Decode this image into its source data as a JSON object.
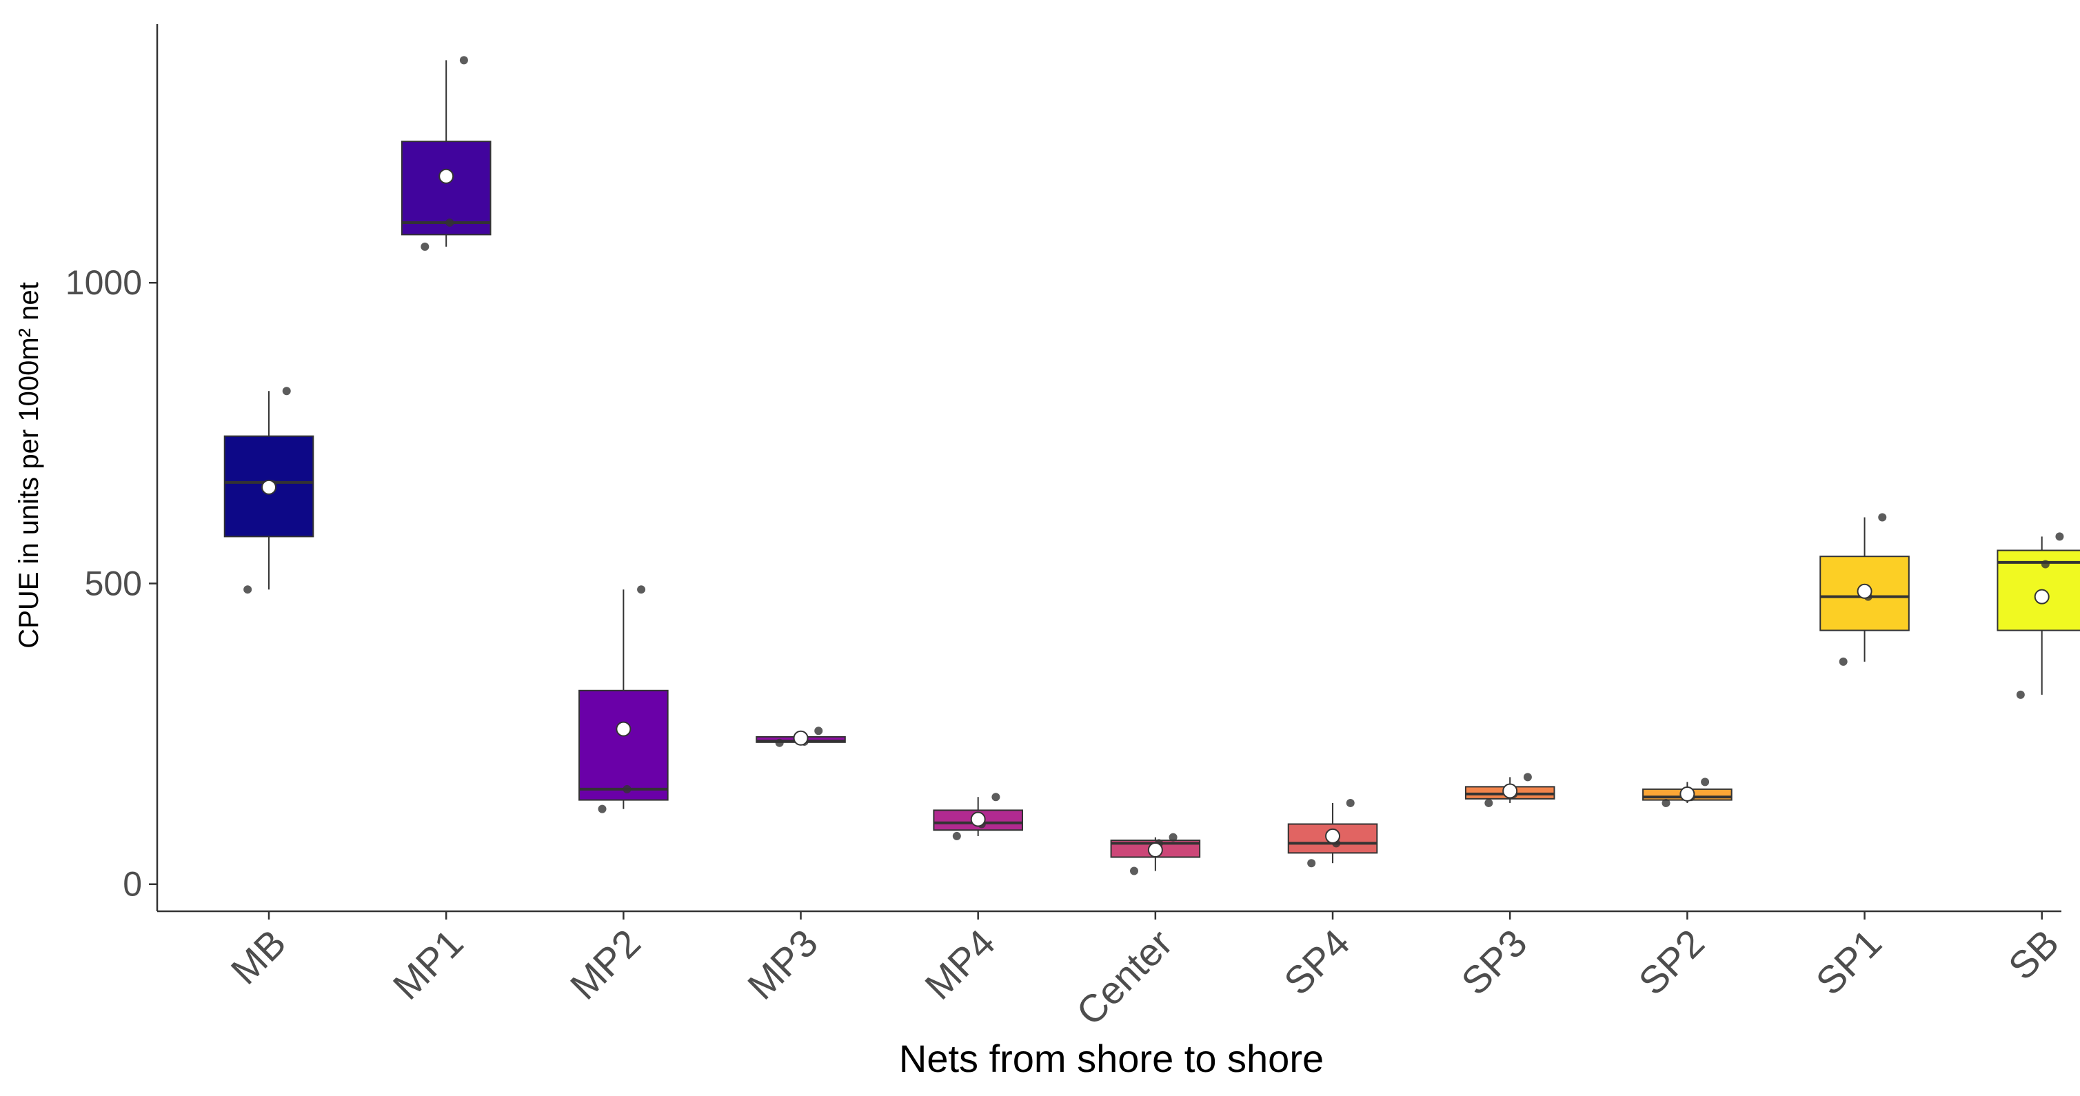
{
  "chart_data": {
    "type": "boxplot",
    "title": "",
    "xlabel": "Nets from shore to shore",
    "ylabel": "CPUE in units per 1000m² net",
    "ylim": [
      -45,
      1430
    ],
    "yticks": [
      0,
      500,
      1000
    ],
    "grid": false,
    "legend": "none",
    "categories": [
      "MB",
      "MP1",
      "MP2",
      "MP3",
      "MP4",
      "Center",
      "SP4",
      "SP3",
      "SP2",
      "SP1",
      "SB"
    ],
    "boxes": [
      {
        "category": "MB",
        "color": "#0d0887",
        "whisker_low": 490,
        "q1": 578,
        "median": 668,
        "q3": 745,
        "whisker_high": 820,
        "mean": 660,
        "points": [
          490,
          665,
          820
        ]
      },
      {
        "category": "MP1",
        "color": "#41049d",
        "whisker_low": 1060,
        "q1": 1080,
        "median": 1100,
        "q3": 1235,
        "whisker_high": 1370,
        "mean": 1177,
        "points": [
          1060,
          1100,
          1370
        ]
      },
      {
        "category": "MP2",
        "color": "#6a00a8",
        "whisker_low": 125,
        "q1": 140,
        "median": 158,
        "q3": 322,
        "whisker_high": 490,
        "mean": 258,
        "points": [
          125,
          158,
          490
        ]
      },
      {
        "category": "MP3",
        "color": "#8f0da4",
        "whisker_low": 235,
        "q1": 236,
        "median": 238,
        "q3": 245,
        "whisker_high": 255,
        "mean": 243,
        "points": [
          235,
          237,
          255
        ]
      },
      {
        "category": "MP4",
        "color": "#b12a90",
        "whisker_low": 80,
        "q1": 90,
        "median": 102,
        "q3": 123,
        "whisker_high": 145,
        "mean": 108,
        "points": [
          80,
          100,
          145
        ]
      },
      {
        "category": "Center",
        "color": "#cc4778",
        "whisker_low": 22,
        "q1": 45,
        "median": 68,
        "q3": 73,
        "whisker_high": 78,
        "mean": 57,
        "points": [
          22,
          68,
          78
        ]
      },
      {
        "category": "SP4",
        "color": "#e16462",
        "whisker_low": 35,
        "q1": 52,
        "median": 68,
        "q3": 100,
        "whisker_high": 135,
        "mean": 80,
        "points": [
          35,
          68,
          135
        ]
      },
      {
        "category": "SP3",
        "color": "#f2844b",
        "whisker_low": 135,
        "q1": 142,
        "median": 150,
        "q3": 162,
        "whisker_high": 178,
        "mean": 155,
        "points": [
          135,
          150,
          178
        ]
      },
      {
        "category": "SP2",
        "color": "#fca636",
        "whisker_low": 135,
        "q1": 140,
        "median": 145,
        "q3": 158,
        "whisker_high": 170,
        "mean": 150,
        "points": [
          135,
          145,
          170
        ]
      },
      {
        "category": "SP1",
        "color": "#fccf25",
        "whisker_low": 370,
        "q1": 422,
        "median": 478,
        "q3": 545,
        "whisker_high": 610,
        "mean": 487,
        "points": [
          370,
          478,
          610
        ]
      },
      {
        "category": "SB",
        "color": "#f0f921",
        "whisker_low": 315,
        "q1": 422,
        "median": 535,
        "q3": 555,
        "whisker_high": 578,
        "mean": 478,
        "points": [
          315,
          532,
          578
        ]
      }
    ]
  }
}
